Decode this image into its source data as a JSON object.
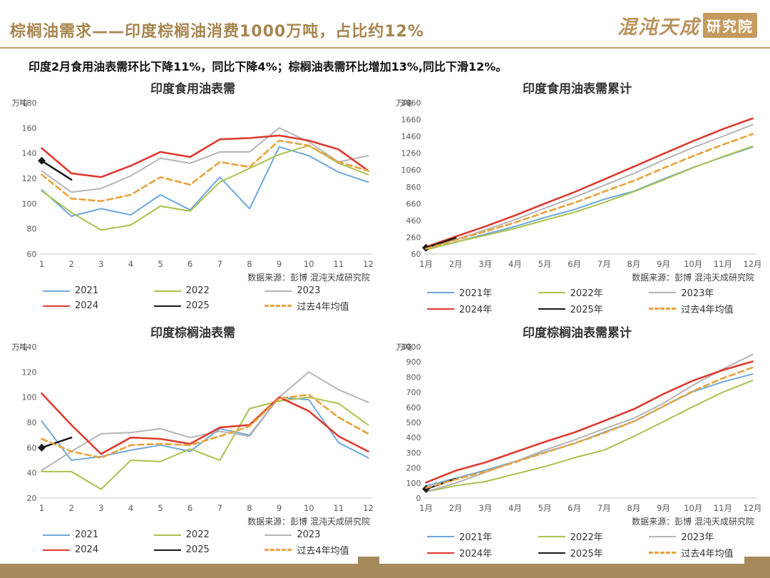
{
  "header": {
    "title": "棕榈油需求——印度棕榈油消费1000万吨，占比约12%",
    "logo_script": "混沌天成",
    "logo_box": "研究院"
  },
  "subtitle": "印度2月食用油表需环比下降11%，同比下降4%；棕榈油表需环比增加13%,同比下滑12%。",
  "colors": {
    "accent_gold": "#a6854e",
    "footer_bar": "#a68a5b",
    "axis_line": "#d9d9d9",
    "tick_text": "#595959"
  },
  "chart_data": [
    {
      "type": "line",
      "title": "印度食用油表需",
      "unit": "万吨",
      "source": "数据来源：彭博  混沌天成研究院",
      "categories": [
        "1",
        "2",
        "3",
        "4",
        "5",
        "6",
        "7",
        "8",
        "9",
        "10",
        "11",
        "12"
      ],
      "ylim": [
        60,
        180
      ],
      "yticks": [
        60,
        80,
        100,
        120,
        140,
        160,
        180
      ],
      "grid": false,
      "legend_position": "bottom",
      "series": [
        {
          "name": "2021",
          "color": "#6fa8dc",
          "width": 2,
          "values": [
            111,
            90,
            96,
            91,
            107,
            95,
            121,
            96,
            145,
            138,
            125,
            117
          ]
        },
        {
          "name": "2022",
          "color": "#a9c24e",
          "width": 2,
          "values": [
            110,
            93,
            79,
            83,
            98,
            94,
            117,
            128,
            139,
            146,
            132,
            123
          ]
        },
        {
          "name": "2023",
          "color": "#b5b5b5",
          "width": 2,
          "values": [
            126,
            109,
            112,
            122,
            136,
            132,
            141,
            141,
            160,
            149,
            133,
            138
          ]
        },
        {
          "name": "2024",
          "color": "#de3b30",
          "width": 2.6,
          "values": [
            144,
            124,
            121,
            130,
            141,
            137,
            151,
            152,
            154,
            150,
            143,
            126
          ]
        },
        {
          "name": "2025",
          "color": "#1a1a1a",
          "width": 2.6,
          "marker": "diamond",
          "values": [
            134,
            119
          ]
        },
        {
          "name": "过去4年均值",
          "color": "#e9a23b",
          "width": 2.6,
          "dash": "8 5",
          "values": [
            123,
            104,
            102,
            107,
            121,
            115,
            133,
            129,
            150,
            146,
            133,
            126
          ]
        }
      ]
    },
    {
      "type": "line",
      "title": "印度食用油表需累计",
      "unit": "万吨",
      "source": "数据来源：彭博  混沌天成研究院",
      "categories": [
        "1月",
        "2月",
        "3月",
        "4月",
        "5月",
        "6月",
        "7月",
        "8月",
        "9月",
        "10月",
        "11月",
        "12月"
      ],
      "ylim": [
        60,
        1860
      ],
      "yticks": [
        60,
        260,
        460,
        660,
        860,
        1060,
        1260,
        1460,
        1660,
        1860
      ],
      "grid": false,
      "legend_position": "bottom",
      "series": [
        {
          "name": "2021年",
          "color": "#6fa8dc",
          "width": 2,
          "values": [
            111,
            201,
            297,
            388,
            495,
            590,
            711,
            807,
            952,
            1090,
            1215,
            1332
          ]
        },
        {
          "name": "2022年",
          "color": "#a9c24e",
          "width": 2,
          "values": [
            110,
            203,
            282,
            365,
            463,
            557,
            674,
            802,
            941,
            1087,
            1219,
            1342
          ]
        },
        {
          "name": "2023年",
          "color": "#b5b5b5",
          "width": 2,
          "values": [
            126,
            235,
            347,
            469,
            605,
            737,
            878,
            1019,
            1179,
            1328,
            1461,
            1599
          ]
        },
        {
          "name": "2024年",
          "color": "#de3b30",
          "width": 2.6,
          "values": [
            144,
            268,
            389,
            519,
            660,
            797,
            948,
            1100,
            1254,
            1404,
            1547,
            1673
          ]
        },
        {
          "name": "2025年",
          "color": "#1a1a1a",
          "width": 2.6,
          "marker": "diamond",
          "values": [
            134,
            253
          ]
        },
        {
          "name": "过去4年均值",
          "color": "#e9a23b",
          "width": 2.6,
          "dash": "8 5",
          "values": [
            123,
            227,
            329,
            435,
            556,
            670,
            803,
            932,
            1082,
            1227,
            1361,
            1487
          ]
        }
      ]
    },
    {
      "type": "line",
      "title": "印度棕榈油表需",
      "unit": "万吨",
      "source": "数据来源：彭博  混沌天成研究院",
      "categories": [
        "1",
        "2",
        "3",
        "4",
        "5",
        "6",
        "7",
        "8",
        "9",
        "10",
        "11",
        "12"
      ],
      "ylim": [
        20,
        140
      ],
      "yticks": [
        20,
        40,
        60,
        80,
        100,
        120,
        140
      ],
      "grid": false,
      "legend_position": "bottom",
      "series": [
        {
          "name": "2021",
          "color": "#6fa8dc",
          "width": 2,
          "values": [
            81,
            50,
            53,
            58,
            62,
            57,
            75,
            70,
            100,
            98,
            64,
            52
          ]
        },
        {
          "name": "2022",
          "color": "#a9c24e",
          "width": 2,
          "values": [
            41,
            41,
            27,
            50,
            49,
            59,
            50,
            91,
            97,
            100,
            95,
            78
          ]
        },
        {
          "name": "2023",
          "color": "#b5b5b5",
          "width": 2,
          "values": [
            42,
            57,
            71,
            72,
            75,
            68,
            73,
            69,
            100,
            120,
            106,
            96
          ]
        },
        {
          "name": "2024",
          "color": "#de3b30",
          "width": 2.6,
          "values": [
            103,
            78,
            55,
            68,
            67,
            63,
            76,
            78,
            100,
            89,
            69,
            57
          ]
        },
        {
          "name": "2025",
          "color": "#1a1a1a",
          "width": 2.6,
          "marker": "diamond",
          "values": [
            60,
            68
          ]
        },
        {
          "name": "过去4年均值",
          "color": "#e9a23b",
          "width": 2.6,
          "dash": "8 5",
          "values": [
            67,
            57,
            52,
            62,
            63,
            62,
            69,
            77,
            99,
            102,
            84,
            71
          ]
        }
      ]
    },
    {
      "type": "line",
      "title": "印度棕榈油表需累计",
      "unit": "万吨",
      "source": "数据来源：彭博  混沌天成研究院",
      "categories": [
        "1月",
        "2月",
        "3月",
        "4月",
        "5月",
        "6月",
        "7月",
        "8月",
        "9月",
        "10月",
        "11月",
        "12月"
      ],
      "ylim": [
        0,
        1000
      ],
      "yticks": [
        0,
        100,
        200,
        300,
        400,
        500,
        600,
        700,
        800,
        900,
        1000
      ],
      "grid": false,
      "legend_position": "bottom",
      "series": [
        {
          "name": "2021年",
          "color": "#6fa8dc",
          "width": 2,
          "values": [
            81,
            131,
            184,
            242,
            304,
            361,
            436,
            506,
            606,
            704,
            768,
            820
          ]
        },
        {
          "name": "2022年",
          "color": "#a9c24e",
          "width": 2,
          "values": [
            41,
            82,
            109,
            159,
            208,
            267,
            317,
            408,
            505,
            605,
            700,
            778
          ]
        },
        {
          "name": "2023年",
          "color": "#b5b5b5",
          "width": 2,
          "values": [
            42,
            99,
            170,
            242,
            317,
            385,
            458,
            527,
            627,
            747,
            853,
            949
          ]
        },
        {
          "name": "2024年",
          "color": "#de3b30",
          "width": 2.6,
          "values": [
            103,
            181,
            236,
            304,
            371,
            434,
            510,
            588,
            688,
            777,
            846,
            903
          ]
        },
        {
          "name": "2025年",
          "color": "#1a1a1a",
          "width": 2.6,
          "marker": "diamond",
          "values": [
            60,
            128
          ]
        },
        {
          "name": "过去4年均值",
          "color": "#e9a23b",
          "width": 2.6,
          "dash": "8 5",
          "values": [
            67,
            123,
            175,
            237,
            300,
            362,
            430,
            507,
            607,
            708,
            792,
            863
          ]
        }
      ]
    }
  ]
}
